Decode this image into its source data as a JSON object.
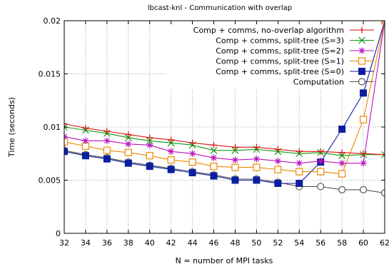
{
  "chart_data": {
    "type": "line",
    "title": "lbcast-knl - Communication with overlap",
    "xlabel": "N = number of MPI tasks",
    "ylabel": "Time (seconds)",
    "xlim": [
      32,
      62
    ],
    "ylim": [
      0,
      0.02
    ],
    "xticks": [
      32,
      34,
      36,
      38,
      40,
      42,
      44,
      46,
      48,
      50,
      52,
      54,
      56,
      58,
      60,
      62
    ],
    "xtick_labels": [
      "32",
      "34",
      "36",
      "38",
      "40",
      "42",
      "44",
      "46",
      "48",
      "50",
      "52",
      "54",
      "56",
      "58",
      "60",
      "62"
    ],
    "yticks": [
      0,
      0.005,
      0.01,
      0.015,
      0.02
    ],
    "ytick_labels": [
      "0",
      "0.005",
      "0.01",
      "0.015",
      "0.02"
    ],
    "grid": "dotted",
    "legend_position": "top-right",
    "x": [
      32,
      34,
      36,
      38,
      40,
      42,
      44,
      46,
      48,
      50,
      52,
      54,
      56,
      58,
      60,
      62
    ],
    "series": [
      {
        "name": "Comp + comms, no-overlap algorithm",
        "color": "#dd1111",
        "marker": "plus",
        "values": [
          0.0103,
          0.0099,
          0.0096,
          0.0093,
          0.009,
          0.0088,
          0.0085,
          0.0083,
          0.0081,
          0.0081,
          0.0079,
          0.0077,
          0.0077,
          0.0076,
          0.0075,
          0.0074
        ]
      },
      {
        "name": "Comp + comms, split-tree (S=3)",
        "color": "#119911",
        "marker": "cross",
        "values": [
          0.01,
          0.0097,
          0.0094,
          0.009,
          0.0087,
          0.0085,
          0.0083,
          0.0078,
          0.0078,
          0.0079,
          0.0077,
          0.0075,
          0.0076,
          0.0073,
          0.0074,
          0.0074
        ]
      },
      {
        "name": "Comp + comms, split-tree (S=2)",
        "color": "#bb11bb",
        "marker": "star",
        "values": [
          0.0091,
          0.0087,
          0.0087,
          0.0084,
          0.0083,
          0.0077,
          0.0075,
          0.0071,
          0.0069,
          0.007,
          0.0068,
          0.0066,
          0.0068,
          0.0066,
          0.0066,
          0.02
        ]
      },
      {
        "name": "Comp + comms, split-tree (S=1)",
        "color": "#ee8800",
        "marker": "open-square",
        "values": [
          0.0086,
          0.0082,
          0.0078,
          0.0076,
          0.0073,
          0.0069,
          0.0067,
          0.0063,
          0.0062,
          0.0062,
          0.006,
          0.0058,
          0.0058,
          0.0056,
          0.0107,
          0.02
        ]
      },
      {
        "name": "Comp + comms, split-tree (S=0)",
        "color": "#0b1f9e",
        "marker": "filled-square",
        "values": [
          0.0077,
          0.0073,
          0.007,
          0.0066,
          0.0063,
          0.006,
          0.0057,
          0.0054,
          0.005,
          0.005,
          0.0047,
          0.0047,
          0.0067,
          0.0098,
          0.0132,
          0.02
        ]
      },
      {
        "name": "Computation",
        "color": "#555555",
        "marker": "open-circle",
        "values": [
          0.0078,
          0.0074,
          0.0071,
          0.0067,
          0.0064,
          0.0061,
          0.0058,
          0.0055,
          0.0051,
          0.0051,
          0.0048,
          0.0044,
          0.0044,
          0.0041,
          0.0041,
          0.0038
        ]
      }
    ]
  }
}
